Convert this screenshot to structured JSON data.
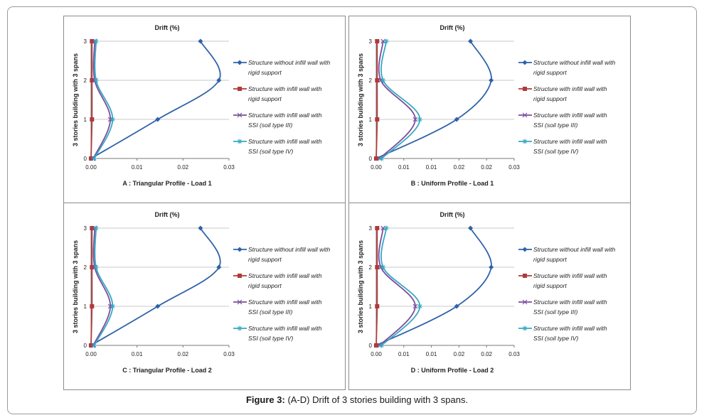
{
  "figure": {
    "caption_label": "Figure 3:",
    "caption_text": " (A-D) Drift of 3 stories building with 3 spans."
  },
  "colors": {
    "no_infill": "#2f62a8",
    "infill_rigid": "#b03a3a",
    "ssi_III": "#7b4d9c",
    "ssi_IV": "#35a8c4",
    "grid": "#c8c8c8"
  },
  "chart_data": [
    {
      "id": "A",
      "type": "line",
      "title": "Drift (%)",
      "subtitle": "A : Triangular Profile - Load 1",
      "ylabel": "3 stories building with 3 spans",
      "xlim": [
        0,
        0.03
      ],
      "xticks": [
        "0.00",
        "0.01",
        "0.02",
        "0.03"
      ],
      "ylim": [
        0,
        3
      ],
      "yticks": [
        "0",
        "1",
        "2",
        "3"
      ],
      "series": [
        {
          "name": "Structure without infill wall with rigid support",
          "x": [
            0.0,
            0.0145,
            0.0278,
            0.0238
          ],
          "y": [
            0,
            1,
            2,
            3
          ],
          "marker": "diamond"
        },
        {
          "name": "Structure with infill wall with rigid support",
          "x": [
            0.0,
            0.0002,
            0.0002,
            0.0002
          ],
          "y": [
            0,
            1,
            2,
            3
          ],
          "marker": "square"
        },
        {
          "name": "Structure with infill wall with SSI (soil type III)",
          "x": [
            0.0005,
            0.0042,
            0.0008,
            0.0008
          ],
          "y": [
            0,
            1,
            2,
            3
          ],
          "marker": "x"
        },
        {
          "name": "Structure with infill wall with SSI (soil type IV)",
          "x": [
            0.0007,
            0.0047,
            0.0011,
            0.0011
          ],
          "y": [
            0,
            1,
            2,
            3
          ],
          "marker": "star"
        }
      ]
    },
    {
      "id": "B",
      "type": "line",
      "title": "Drift (%)",
      "subtitle": "B : Uniform Profile - Load 1",
      "ylabel": "3 stories building with 3 spans",
      "xlim": [
        0,
        0.03
      ],
      "xticks": [
        "0.00",
        "0.01",
        "0.01",
        "0.02",
        "0.02",
        "0.03"
      ],
      "ylim": [
        0,
        3
      ],
      "yticks": [
        "0",
        "1",
        "2",
        "3"
      ],
      "series": [
        {
          "name": "Structure without infill wall with rigid support",
          "x": [
            0.0,
            0.0175,
            0.025,
            0.0205
          ],
          "y": [
            0,
            1,
            2,
            3
          ],
          "marker": "diamond"
        },
        {
          "name": "Structure with infill wall with rigid support",
          "x": [
            0.0,
            0.0002,
            0.0002,
            0.0002
          ],
          "y": [
            0,
            1,
            2,
            3
          ],
          "marker": "square"
        },
        {
          "name": "Structure with infill wall with SSI (soil type III)",
          "x": [
            0.0008,
            0.0085,
            0.001,
            0.0015
          ],
          "y": [
            0,
            1,
            2,
            3
          ],
          "marker": "x"
        },
        {
          "name": "Structure with infill wall with SSI (soil type IV)",
          "x": [
            0.0012,
            0.0095,
            0.0015,
            0.0022
          ],
          "y": [
            0,
            1,
            2,
            3
          ],
          "marker": "star"
        }
      ]
    },
    {
      "id": "C",
      "type": "line",
      "title": "Drift (%)",
      "subtitle": "C : Triangular Profile - Load 2",
      "ylabel": "3 stories building with 3 spans",
      "xlim": [
        0,
        0.03
      ],
      "xticks": [
        "0.00",
        "0.01",
        "0.02",
        "0.03"
      ],
      "ylim": [
        0,
        3
      ],
      "yticks": [
        "0",
        "1",
        "2",
        "3"
      ],
      "series": [
        {
          "name": "Structure without infill wall with rigid support",
          "x": [
            0.0,
            0.0145,
            0.0278,
            0.0238
          ],
          "y": [
            0,
            1,
            2,
            3
          ],
          "marker": "diamond"
        },
        {
          "name": "Structure with infill wall with rigid support",
          "x": [
            0.0,
            0.0002,
            0.0002,
            0.0002
          ],
          "y": [
            0,
            1,
            2,
            3
          ],
          "marker": "square"
        },
        {
          "name": "Structure with infill wall with SSI (soil type III)",
          "x": [
            0.0005,
            0.0042,
            0.0008,
            0.0008
          ],
          "y": [
            0,
            1,
            2,
            3
          ],
          "marker": "x"
        },
        {
          "name": "Structure with infill wall with SSI (soil type IV)",
          "x": [
            0.0007,
            0.0047,
            0.0011,
            0.0011
          ],
          "y": [
            0,
            1,
            2,
            3
          ],
          "marker": "star"
        }
      ]
    },
    {
      "id": "D",
      "type": "line",
      "title": "Drift (%)",
      "subtitle": "D : Uniform Profile - Load 2",
      "ylabel": "3 stories building with 3 spans",
      "xlim": [
        0,
        0.03
      ],
      "xticks": [
        "0.00",
        "0.01",
        "0.01",
        "0.02",
        "0.02",
        "0.03"
      ],
      "ylim": [
        0,
        3
      ],
      "yticks": [
        "0",
        "1",
        "2",
        "3"
      ],
      "series": [
        {
          "name": "Structure without infill wall with rigid support",
          "x": [
            0.0,
            0.0175,
            0.025,
            0.0205
          ],
          "y": [
            0,
            1,
            2,
            3
          ],
          "marker": "diamond"
        },
        {
          "name": "Structure with infill wall with rigid support",
          "x": [
            0.0,
            0.0002,
            0.0002,
            0.0002
          ],
          "y": [
            0,
            1,
            2,
            3
          ],
          "marker": "square"
        },
        {
          "name": "Structure with infill wall with SSI (soil type III)",
          "x": [
            0.0008,
            0.0085,
            0.001,
            0.0015
          ],
          "y": [
            0,
            1,
            2,
            3
          ],
          "marker": "x"
        },
        {
          "name": "Structure with infill wall with SSI (soil type IV)",
          "x": [
            0.0012,
            0.0095,
            0.0015,
            0.0022
          ],
          "y": [
            0,
            1,
            2,
            3
          ],
          "marker": "star"
        }
      ]
    }
  ]
}
